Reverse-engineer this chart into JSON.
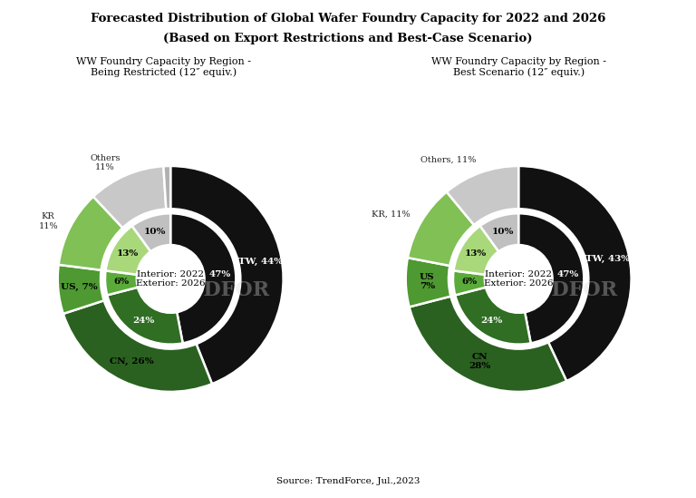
{
  "title_line1": "Forecasted Distribution of Global Wafer Foundry Capacity for 2022 and 2026",
  "title_line2": "(Based on Export Restrictions and Best-Case Scenario)",
  "subtitle_left": "WW Foundry Capacity by Region -\nBeing Restricted (12″ equiv.)",
  "subtitle_right": "WW Foundry Capacity by Region -\nBest Scenario (12″ equiv.)",
  "source": "Source: TrendForce, Jul.,2023",
  "center_text": "Interior: 2022\nExterior: 2026",
  "bg_color": "#ffffff",
  "left_chart": {
    "inner_values": [
      47,
      24,
      6,
      13,
      10
    ],
    "inner_colors": [
      "#111111",
      "#2f6e23",
      "#5aab3a",
      "#a8d87a",
      "#c0c0c0"
    ],
    "inner_labels": [
      "47%",
      "24%",
      "6%",
      "13%",
      "10%"
    ],
    "inner_label_colors": [
      "white",
      "white",
      "black",
      "black",
      "black"
    ],
    "outer_values": [
      44,
      26,
      7,
      11,
      11,
      1
    ],
    "outer_colors": [
      "#111111",
      "#2a6120",
      "#4e9932",
      "#80c055",
      "#c8c8c8",
      "#b0b0b0"
    ],
    "outer_labels": [
      "TW, 44%",
      "CN, 26%",
      "US, 7%",
      "KR\n11%",
      "Others\n11%",
      ""
    ],
    "outer_label_colors": [
      "white",
      "black",
      "black",
      "black",
      "black",
      "black"
    ],
    "outer_label_outside": [
      false,
      false,
      false,
      true,
      true,
      false
    ]
  },
  "right_chart": {
    "inner_values": [
      47,
      24,
      6,
      13,
      10
    ],
    "inner_colors": [
      "#111111",
      "#2f6e23",
      "#5aab3a",
      "#a8d87a",
      "#c0c0c0"
    ],
    "inner_labels": [
      "47%",
      "24%",
      "6%",
      "13%",
      "10%"
    ],
    "inner_label_colors": [
      "white",
      "white",
      "black",
      "black",
      "black"
    ],
    "outer_values": [
      43,
      28,
      7,
      11,
      11
    ],
    "outer_colors": [
      "#111111",
      "#2a6120",
      "#4e9932",
      "#80c055",
      "#c8c8c8"
    ],
    "outer_labels": [
      "TW, 43%",
      "CN\n28%",
      "US\n7%",
      "KR, 11%",
      "Others, 11%"
    ],
    "outer_label_colors": [
      "white",
      "black",
      "black",
      "black",
      "black"
    ],
    "outer_label_outside": [
      false,
      false,
      false,
      true,
      true
    ]
  }
}
